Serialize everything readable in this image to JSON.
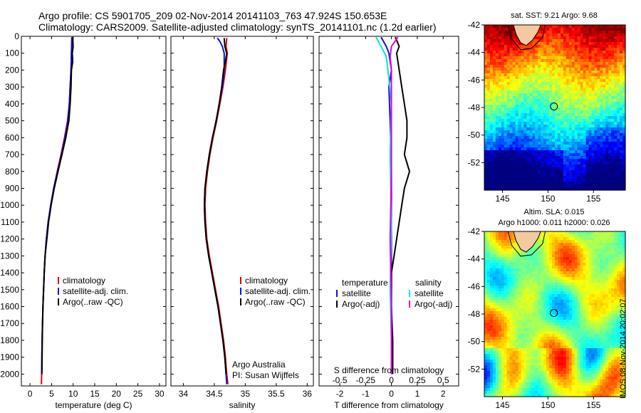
{
  "title": {
    "line1": "Argo profile: CS 5901705_209 02-Nov-2014 20141103_763 47.924S 150.653E",
    "line2": "Climatology: CARS2009. Satellite-adjusted climatology: synTS_20141101.nc (1.2d earlier)"
  },
  "watermark": "IMOS 08-Nov-2014 20:02:07",
  "colors": {
    "climatology": "#e00000",
    "satellite": "#1010e0",
    "argo": "#000000",
    "satellite_s": "#00e0e0",
    "argo_s": "#e000e0"
  },
  "chart_data": [
    {
      "id": "temperature",
      "type": "line",
      "xlabel": "temperature (deg C)",
      "ylabel": "",
      "xlim": [
        -2,
        31.5
      ],
      "ylim": [
        2070,
        0
      ],
      "xticks": [
        0,
        5,
        10,
        15,
        20,
        25,
        30
      ],
      "yticks": [
        0,
        100,
        200,
        300,
        400,
        500,
        600,
        700,
        800,
        900,
        1000,
        1100,
        1200,
        1300,
        1400,
        1500,
        1600,
        1700,
        1800,
        1900,
        2000
      ],
      "legend": [
        "climatology",
        "satellite-adj. clim.",
        "Argo(..raw -QC)"
      ],
      "series": [
        {
          "name": "climatology",
          "color": "#e00000",
          "points": [
            [
              9.7,
              5
            ],
            [
              9.6,
              100
            ],
            [
              9.5,
              200
            ],
            [
              9.3,
              300
            ],
            [
              9.1,
              400
            ],
            [
              8.7,
              500
            ],
            [
              8.0,
              600
            ],
            [
              7.2,
              700
            ],
            [
              6.3,
              800
            ],
            [
              5.5,
              900
            ],
            [
              4.8,
              1000
            ],
            [
              4.2,
              1100
            ],
            [
              3.8,
              1200
            ],
            [
              3.5,
              1300
            ],
            [
              3.3,
              1400
            ],
            [
              3.15,
              1500
            ],
            [
              3.0,
              1600
            ],
            [
              2.9,
              1700
            ],
            [
              2.8,
              1800
            ],
            [
              2.75,
              1900
            ],
            [
              2.7,
              2000
            ],
            [
              2.65,
              2060
            ]
          ]
        },
        {
          "name": "satellite-adj. clim.",
          "color": "#1010e0",
          "points": [
            [
              9.7,
              5
            ],
            [
              9.6,
              100
            ],
            [
              9.5,
              200
            ],
            [
              9.3,
              300
            ],
            [
              9.1,
              400
            ],
            [
              8.8,
              500
            ],
            [
              8.1,
              600
            ],
            [
              7.3,
              700
            ],
            [
              6.4,
              800
            ],
            [
              5.5,
              900
            ],
            [
              4.8,
              1000
            ],
            [
              4.2,
              1100
            ],
            [
              3.8,
              1200
            ],
            [
              3.5,
              1300
            ],
            [
              3.3,
              1400
            ],
            [
              3.15,
              1500
            ],
            [
              3.0,
              1600
            ],
            [
              2.9,
              1700
            ],
            [
              2.8,
              1800
            ],
            [
              2.75,
              1900
            ],
            [
              2.7,
              2000
            ]
          ]
        },
        {
          "name": "Argo(..raw -QC)",
          "color": "#000000",
          "points": [
            [
              9.9,
              5
            ],
            [
              10.0,
              60
            ],
            [
              9.8,
              100
            ],
            [
              9.9,
              150
            ],
            [
              9.6,
              200
            ],
            [
              9.5,
              300
            ],
            [
              9.3,
              400
            ],
            [
              9.0,
              500
            ],
            [
              8.3,
              600
            ],
            [
              7.4,
              700
            ],
            [
              6.5,
              800
            ],
            [
              5.6,
              900
            ],
            [
              4.9,
              1000
            ],
            [
              4.3,
              1100
            ],
            [
              3.9,
              1200
            ],
            [
              3.5,
              1300
            ],
            [
              3.3,
              1400
            ],
            [
              3.15,
              1500
            ],
            [
              3.0,
              1600
            ],
            [
              2.9,
              1700
            ],
            [
              2.85,
              1800
            ],
            [
              2.8,
              1900
            ],
            [
              2.75,
              2000
            ]
          ]
        }
      ]
    },
    {
      "id": "salinity",
      "type": "line",
      "xlabel": "salinity",
      "xlim": [
        33.8,
        36.1
      ],
      "ylim": [
        2070,
        0
      ],
      "xticks": [
        34,
        34.5,
        35,
        35.5,
        36
      ],
      "legend": [
        "climatology",
        "satellite-adj. clim.",
        "Argo(..raw -QC)"
      ],
      "annotation": [
        "Argo Australia",
        "PI: Susan Wijffels"
      ],
      "series": [
        {
          "name": "climatology",
          "color": "#e00000",
          "points": [
            [
              34.7,
              10
            ],
            [
              34.69,
              60
            ],
            [
              34.71,
              100
            ],
            [
              34.68,
              200
            ],
            [
              34.64,
              300
            ],
            [
              34.59,
              400
            ],
            [
              34.54,
              500
            ],
            [
              34.48,
              600
            ],
            [
              34.43,
              700
            ],
            [
              34.39,
              800
            ],
            [
              34.36,
              900
            ],
            [
              34.35,
              1000
            ],
            [
              34.36,
              1100
            ],
            [
              34.38,
              1200
            ],
            [
              34.42,
              1300
            ],
            [
              34.47,
              1400
            ],
            [
              34.52,
              1500
            ],
            [
              34.57,
              1600
            ],
            [
              34.61,
              1700
            ],
            [
              34.65,
              1800
            ],
            [
              34.68,
              1900
            ],
            [
              34.7,
              2000
            ],
            [
              34.72,
              2060
            ]
          ]
        },
        {
          "name": "satellite-adj. clim.",
          "color": "#1010e0",
          "points": [
            [
              34.55,
              10
            ],
            [
              34.59,
              30
            ],
            [
              34.63,
              60
            ],
            [
              34.66,
              100
            ],
            [
              34.66,
              200
            ],
            [
              34.63,
              300
            ],
            [
              34.58,
              400
            ],
            [
              34.53,
              500
            ],
            [
              34.47,
              600
            ],
            [
              34.42,
              700
            ],
            [
              34.38,
              800
            ],
            [
              34.35,
              900
            ],
            [
              34.34,
              1000
            ],
            [
              34.35,
              1100
            ],
            [
              34.37,
              1200
            ],
            [
              34.41,
              1300
            ],
            [
              34.46,
              1400
            ],
            [
              34.51,
              1500
            ],
            [
              34.56,
              1600
            ],
            [
              34.6,
              1700
            ],
            [
              34.64,
              1800
            ],
            [
              34.67,
              1900
            ],
            [
              34.69,
              2000
            ],
            [
              34.7,
              2060
            ]
          ]
        },
        {
          "name": "Argo(..raw -QC)",
          "color": "#000000",
          "points": [
            [
              34.66,
              10
            ],
            [
              34.67,
              60
            ],
            [
              34.7,
              100
            ],
            [
              34.68,
              150
            ],
            [
              34.65,
              200
            ],
            [
              34.62,
              300
            ],
            [
              34.58,
              400
            ],
            [
              34.53,
              500
            ],
            [
              34.47,
              600
            ],
            [
              34.42,
              700
            ],
            [
              34.38,
              800
            ],
            [
              34.35,
              900
            ],
            [
              34.34,
              1000
            ],
            [
              34.35,
              1100
            ],
            [
              34.37,
              1200
            ],
            [
              34.41,
              1300
            ],
            [
              34.46,
              1400
            ],
            [
              34.51,
              1500
            ],
            [
              34.56,
              1600
            ],
            [
              34.6,
              1700
            ],
            [
              34.64,
              1800
            ],
            [
              34.67,
              1900
            ],
            [
              34.69,
              2000
            ]
          ]
        }
      ]
    },
    {
      "id": "difference",
      "type": "line",
      "xlabel": "T difference from climatology",
      "xlabel_top": "S difference from climatology",
      "xlim": [
        -2.8,
        2.6
      ],
      "ylim": [
        2070,
        0
      ],
      "xticks": [
        -2,
        -1,
        0,
        1,
        2
      ],
      "xticks_s": [
        {
          "pos": -2,
          "label": "-0.5"
        },
        {
          "pos": -1,
          "label": "-0.25"
        },
        {
          "pos": 0,
          "label": "0"
        },
        {
          "pos": 1,
          "label": "0.25"
        },
        {
          "pos": 2,
          "label": "0.5"
        }
      ],
      "legend_t_title": "temperature",
      "legend_s_title": "salinity",
      "legend_t": [
        "satellite",
        "Argo(-adj)"
      ],
      "legend_s": [
        "satellite",
        "Argo(-adj)"
      ],
      "series": [
        {
          "name": "T satellite",
          "color": "#1010e0",
          "points": [
            [
              -0.4,
              5
            ],
            [
              -0.2,
              60
            ],
            [
              -0.1,
              100
            ],
            [
              0.0,
              200
            ],
            [
              -0.1,
              300
            ],
            [
              -0.05,
              500
            ],
            [
              0.0,
              800
            ],
            [
              0.0,
              1200
            ],
            [
              0.0,
              1600
            ],
            [
              0.0,
              2000
            ]
          ]
        },
        {
          "name": "T Argo(-adj)",
          "color": "#000000",
          "points": [
            [
              0.15,
              5
            ],
            [
              0.3,
              60
            ],
            [
              0.2,
              100
            ],
            [
              0.3,
              200
            ],
            [
              0.4,
              300
            ],
            [
              0.5,
              400
            ],
            [
              0.6,
              500
            ],
            [
              0.6,
              600
            ],
            [
              0.5,
              700
            ],
            [
              0.7,
              800
            ],
            [
              0.5,
              900
            ],
            [
              0.4,
              1000
            ],
            [
              0.3,
              1100
            ],
            [
              0.2,
              1200
            ],
            [
              0.1,
              1300
            ],
            [
              0.0,
              1400
            ],
            [
              0.0,
              1600
            ],
            [
              0.05,
              1800
            ],
            [
              0.05,
              2000
            ]
          ]
        },
        {
          "name": "S satellite",
          "color": "#00e0e0",
          "points": [
            [
              -0.6,
              5
            ],
            [
              -0.4,
              60
            ],
            [
              -0.2,
              120
            ],
            [
              -0.1,
              250
            ],
            [
              0.0,
              400
            ],
            [
              -0.05,
              700
            ],
            [
              0.0,
              1100
            ],
            [
              -0.05,
              1500
            ],
            [
              0.0,
              1800
            ],
            [
              0.0,
              2000
            ]
          ]
        },
        {
          "name": "S Argo(-adj)",
          "color": "#e000e0",
          "points": [
            [
              0.25,
              5
            ],
            [
              0.0,
              60
            ],
            [
              -0.05,
              120
            ],
            [
              0.0,
              200
            ],
            [
              0.0,
              400
            ],
            [
              0.0,
              800
            ],
            [
              -0.05,
              1200
            ],
            [
              0.0,
              1600
            ],
            [
              0.0,
              2000
            ]
          ]
        }
      ]
    },
    {
      "id": "sst-map",
      "type": "heatmap",
      "title": "sat. SST: 9.21 Argo: 9.68",
      "xlim": [
        143,
        158.5
      ],
      "ylim": [
        -54,
        -42
      ],
      "xticks": [
        145,
        150,
        155
      ],
      "yticks": [
        -42,
        -44,
        -46,
        -48,
        -50,
        -52
      ],
      "marker": {
        "lon": 150.653,
        "lat": -47.924
      }
    },
    {
      "id": "sla-map",
      "type": "heatmap",
      "title": "Altim. SLA: 0.015",
      "subtitle": "Argo h1000: 0.011 h2000: 0.026",
      "xlim": [
        143,
        158.5
      ],
      "ylim": [
        -54,
        -42
      ],
      "xticks": [
        145,
        150,
        155
      ],
      "yticks": [
        -42,
        -44,
        -46,
        -48,
        -50,
        -52
      ],
      "marker": {
        "lon": 150.653,
        "lat": -47.924
      }
    }
  ]
}
